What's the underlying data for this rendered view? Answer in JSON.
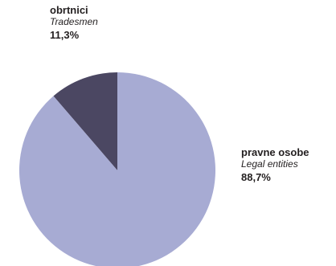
{
  "chart_data": {
    "type": "pie",
    "slices": [
      {
        "name": "obrtnici",
        "translation": "Tradesmen",
        "value": 11.3,
        "value_label": "11,3%",
        "color": "#4b4762"
      },
      {
        "name": "pravne osobe",
        "translation": "Legal entities",
        "value": 88.7,
        "value_label": "88,7%",
        "color": "#a7abd3"
      }
    ],
    "legend": "none",
    "labels_placement": "outside"
  }
}
